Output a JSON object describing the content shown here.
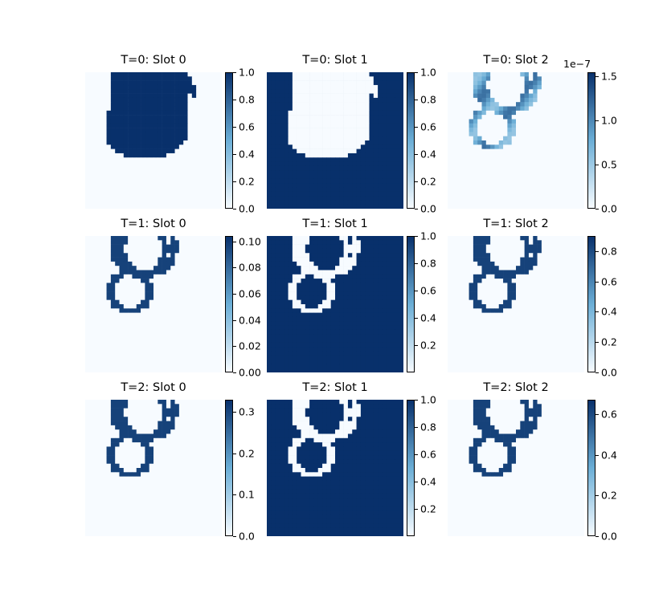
{
  "colors": {
    "cmap_light": "#f7fbff",
    "cmap_mid": "#6baed6",
    "cmap_dark": "#08306b"
  },
  "chart_data": [
    {
      "type": "heatmap",
      "title": "T=0: Slot 0",
      "pattern": "blob",
      "vmin": 0,
      "vmax": 1.0,
      "ticks": [
        "0.0",
        "0.2",
        "0.4",
        "0.6",
        "0.8",
        "1.0"
      ],
      "tick_values": [
        0,
        0.2,
        0.4,
        0.6,
        0.8,
        1.0
      ],
      "sci": ""
    },
    {
      "type": "heatmap",
      "title": "T=0: Slot 1",
      "pattern": "blob-inverse",
      "vmin": 0,
      "vmax": 1.0,
      "ticks": [
        "0.0",
        "0.2",
        "0.4",
        "0.6",
        "0.8",
        "1.0"
      ],
      "tick_values": [
        0,
        0.2,
        0.4,
        0.6,
        0.8,
        1.0
      ],
      "sci": ""
    },
    {
      "type": "heatmap",
      "title": "T=0: Slot 2",
      "pattern": "rings-faint",
      "vmin": 0,
      "vmax": 1.55,
      "ticks": [
        "0.0",
        "0.5",
        "1.0",
        "1.5"
      ],
      "tick_values": [
        0,
        0.5,
        1.0,
        1.5
      ],
      "sci": "1e−7"
    },
    {
      "type": "heatmap",
      "title": "T=1: Slot 0",
      "pattern": "rings",
      "vmin": 0,
      "vmax": 0.104,
      "ticks": [
        "0.00",
        "0.02",
        "0.04",
        "0.06",
        "0.08",
        "0.10"
      ],
      "tick_values": [
        0,
        0.02,
        0.04,
        0.06,
        0.08,
        0.1
      ],
      "sci": ""
    },
    {
      "type": "heatmap",
      "title": "T=1: Slot 1",
      "pattern": "rings-inverse",
      "vmin": 0.0,
      "vmax": 1.0,
      "ticks": [
        "0.2",
        "0.4",
        "0.6",
        "0.8",
        "1.0"
      ],
      "tick_values": [
        0.2,
        0.4,
        0.6,
        0.8,
        1.0
      ],
      "sci": ""
    },
    {
      "type": "heatmap",
      "title": "T=1: Slot 2",
      "pattern": "rings",
      "vmin": 0,
      "vmax": 0.9,
      "ticks": [
        "0.0",
        "0.2",
        "0.4",
        "0.6",
        "0.8"
      ],
      "tick_values": [
        0,
        0.2,
        0.4,
        0.6,
        0.8
      ],
      "sci": ""
    },
    {
      "type": "heatmap",
      "title": "T=2: Slot 0",
      "pattern": "rings",
      "vmin": 0,
      "vmax": 0.33,
      "ticks": [
        "0.0",
        "0.1",
        "0.2",
        "0.3"
      ],
      "tick_values": [
        0,
        0.1,
        0.2,
        0.3
      ],
      "sci": ""
    },
    {
      "type": "heatmap",
      "title": "T=2: Slot 1",
      "pattern": "rings-inverse",
      "vmin": 0.0,
      "vmax": 1.0,
      "ticks": [
        "0.2",
        "0.4",
        "0.6",
        "0.8",
        "1.0"
      ],
      "tick_values": [
        0.2,
        0.4,
        0.6,
        0.8,
        1.0
      ],
      "sci": ""
    },
    {
      "type": "heatmap",
      "title": "T=2: Slot 2",
      "pattern": "rings",
      "vmin": 0,
      "vmax": 0.67,
      "ticks": [
        "0.0",
        "0.2",
        "0.4",
        "0.6"
      ],
      "tick_values": [
        0,
        0.2,
        0.4,
        0.6
      ],
      "sci": ""
    }
  ]
}
